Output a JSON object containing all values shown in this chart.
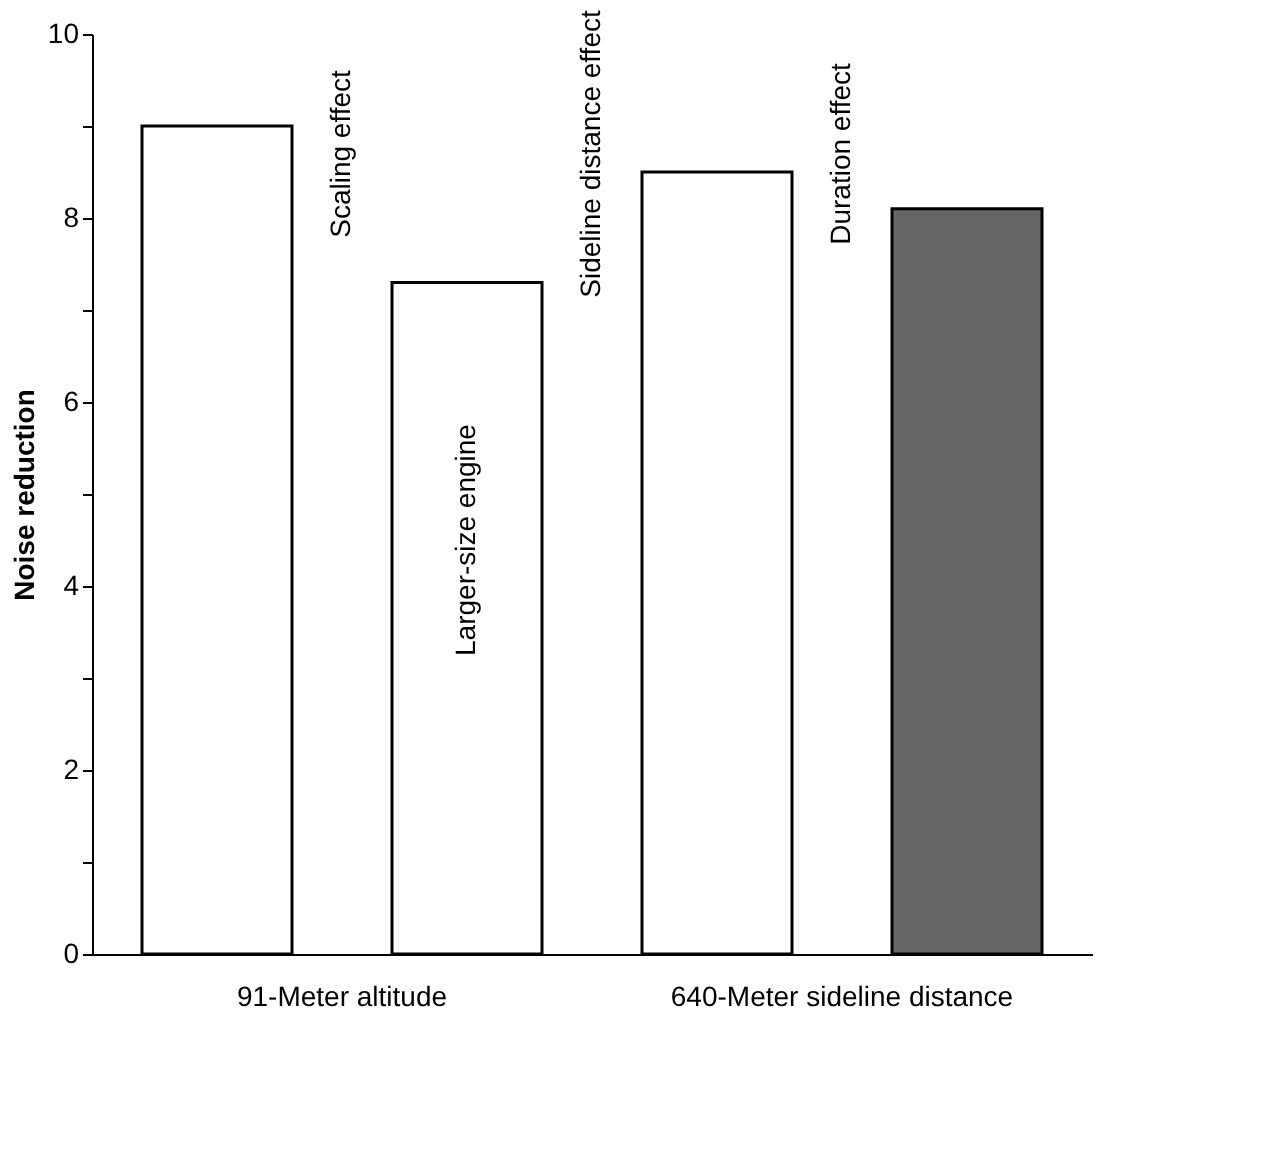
{
  "chart_data": {
    "type": "bar",
    "ylabel": "Noise reduction",
    "categories": [
      null,
      "Larger-size engine",
      null,
      null
    ],
    "values": [
      9.0,
      7.3,
      8.5,
      8.1
    ],
    "colors": [
      "#ffffff",
      "#ffffff",
      "#ffffff",
      "#666666"
    ],
    "ylim": [
      0,
      10
    ],
    "yticks": [
      0,
      {
        "value": 1,
        "label": null
      },
      2,
      {
        "value": 3,
        "label": null
      },
      4,
      {
        "value": 5,
        "label": null
      },
      6,
      {
        "value": 7,
        "label": null
      },
      8,
      {
        "value": 9,
        "label": null
      },
      10
    ],
    "grid": false,
    "annotations": [
      "Scaling effect",
      "Sideline distance effect",
      "Duration effect",
      "91-Meter altitude",
      "640-Meter sideline distance"
    ]
  }
}
